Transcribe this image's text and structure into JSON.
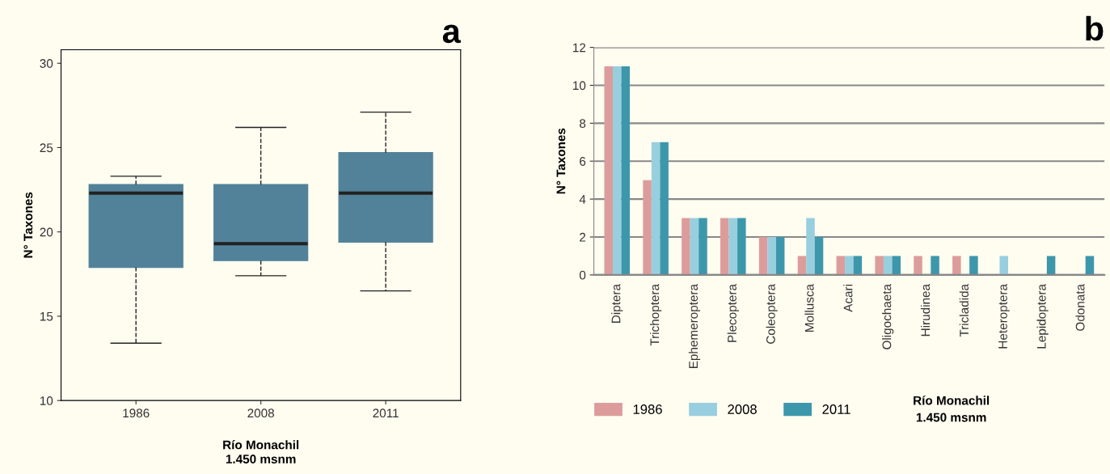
{
  "chart_data": [
    {
      "type": "box",
      "title": "a",
      "xlabel": "Río Monachil\n1.450 msnm",
      "ylabel": "N° Taxones",
      "categories": [
        "1986",
        "2008",
        "2011"
      ],
      "color": "#52829a",
      "ylim": [
        10,
        30.8
      ],
      "yticks": [
        10,
        15,
        20,
        25,
        30
      ],
      "grid": false,
      "boxes": [
        {
          "low": 13.4,
          "q1": 17.9,
          "median": 22.3,
          "q3": 22.8,
          "high": 23.3
        },
        {
          "low": 17.4,
          "q1": 18.3,
          "median": 19.3,
          "q3": 22.8,
          "high": 26.2
        },
        {
          "low": 16.5,
          "q1": 19.4,
          "median": 22.3,
          "q3": 24.7,
          "high": 27.1
        }
      ]
    },
    {
      "type": "bar",
      "title": "b",
      "xlabel": "Río Monachil\n1.450 msnm",
      "ylabel": "N° Taxones",
      "categories": [
        "Diptera",
        "Trichoptera",
        "Ephemeroptera",
        "Plecoptera",
        "Coleoptera",
        "Mollusca",
        "Acari",
        "Oligochaeta",
        "Hirudinea",
        "Tricladida",
        "Heteroptera",
        "Lepidoptera",
        "Odonata"
      ],
      "ylim": [
        0,
        12
      ],
      "yticks": [
        0,
        2,
        4,
        6,
        8,
        10,
        12
      ],
      "grid": "y",
      "legend": "bottom left",
      "series": [
        {
          "name": "1986",
          "color": "#dd9c9c",
          "values": [
            11,
            5,
            3,
            3,
            2,
            1,
            1,
            1,
            1,
            1,
            0,
            0,
            0
          ]
        },
        {
          "name": "2008",
          "color": "#98cfdf",
          "values": [
            11,
            7,
            3,
            3,
            2,
            3,
            1,
            1,
            0,
            0,
            1,
            0,
            0
          ]
        },
        {
          "name": "2011",
          "color": "#3d97ab",
          "values": [
            11,
            7,
            3,
            3,
            2,
            2,
            1,
            1,
            1,
            1,
            0,
            1,
            1
          ]
        }
      ]
    }
  ]
}
